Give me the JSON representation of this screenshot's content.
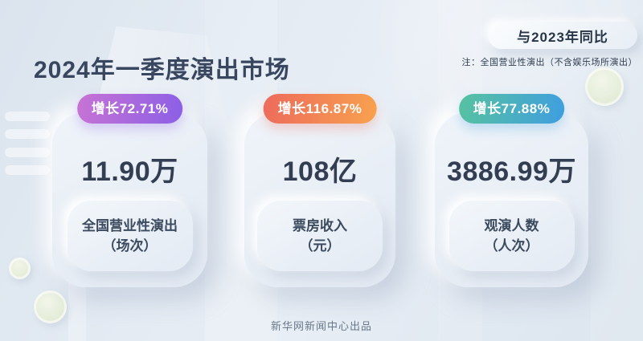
{
  "header": {
    "title": "2024年一季度演出市场",
    "comparison_label": "与2023年同比",
    "note": "注：全国营业性演出（不含娱乐场所演出）"
  },
  "cards": [
    {
      "growth_label": "增长72.71%",
      "value": "11.90万",
      "metric_line1": "全国营业性演出",
      "metric_line2": "（场次）",
      "badge_gradient_from": "#c873d4",
      "badge_gradient_to": "#8b5fe6"
    },
    {
      "growth_label": "增长116.87%",
      "value": "108亿",
      "metric_line1": "票房收入",
      "metric_line2": "（元）",
      "badge_gradient_from": "#ed6a5c",
      "badge_gradient_to": "#f8a24e"
    },
    {
      "growth_label": "增长77.88%",
      "value": "3886.99万",
      "metric_line1": "观演人数",
      "metric_line2": "（人次）",
      "badge_gradient_from": "#57c2a0",
      "badge_gradient_to": "#3f9ee0"
    }
  ],
  "footer": {
    "credit": "新华网新闻中心出品"
  },
  "colors": {
    "background": "#e3eaf2",
    "title_text": "#39465f",
    "value_text": "#333e52",
    "metric_text": "#3b4a5e",
    "note_text": "#2f3d50",
    "footer_text": "#68788a",
    "card_background": "#e9eff6",
    "badge_text": "#ffffff"
  },
  "chart_data": {
    "type": "table",
    "title": "2024年一季度演出市场",
    "subtitle": "与2023年同比",
    "note": "注：全国营业性演出（不含娱乐场所演出）",
    "categories": [
      "全国营业性演出（场次）",
      "票房收入（元）",
      "观演人数（人次）"
    ],
    "values_display": [
      "11.90万",
      "108亿",
      "3886.99万"
    ],
    "values_numeric": [
      119000,
      10800000000,
      38869900
    ],
    "growth_yoy_percent": [
      72.71,
      116.87,
      77.88
    ],
    "source": "新华网新闻中心出品"
  }
}
